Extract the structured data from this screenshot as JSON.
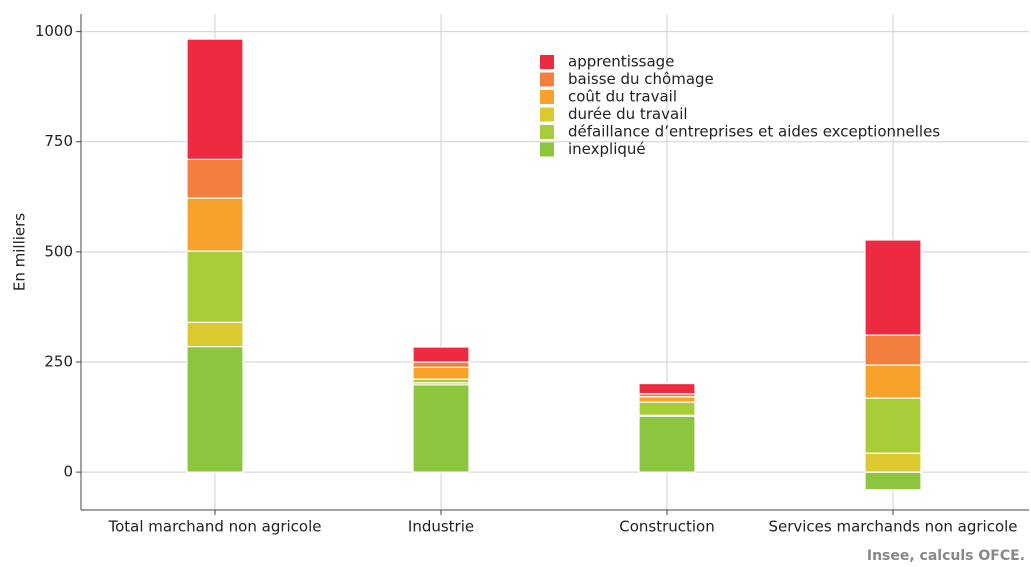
{
  "chart_data": {
    "type": "stacked_bar",
    "y_label": "En milliers",
    "source": "Insee, calculs OFCE.",
    "categories": [
      "Total marchand non agricole",
      "Industrie",
      "Construction",
      "Services marchands non agricole"
    ],
    "series": [
      {
        "name": "apprentissage",
        "color": "#ee2a40",
        "values": [
          273,
          34,
          23,
          216
        ]
      },
      {
        "name": "baisse du chômage",
        "color": "#f27f3e",
        "values": [
          88,
          12,
          7,
          68
        ]
      },
      {
        "name": "coût du travail",
        "color": "#f8a22c",
        "values": [
          120,
          27,
          12,
          75
        ]
      },
      {
        "name": "durée du travail",
        "color": "#dcc92f",
        "values": [
          55,
          5,
          2,
          43
        ]
      },
      {
        "name": "défaillance d’entreprises et aides exceptionnelles",
        "color": "#a9cd38",
        "values": [
          162,
          8,
          30,
          125
        ]
      },
      {
        "name": "inexpliqué",
        "color": "#8cc63e",
        "values": [
          285,
          198,
          127,
          -40
        ]
      }
    ],
    "stack_order": [
      5,
      3,
      4,
      2,
      1,
      0
    ],
    "ylim": [
      -86,
      1040
    ],
    "yticks": [
      0,
      250,
      500,
      750,
      1000
    ],
    "grid": true,
    "legend": "top"
  }
}
